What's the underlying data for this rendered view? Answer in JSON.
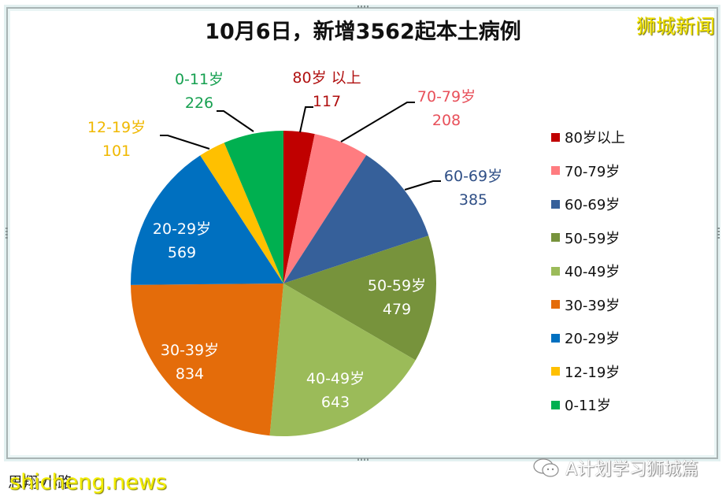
{
  "title": "10月6日，新增3562起本土病例",
  "watermark_top": "狮城新闻",
  "footer": {
    "left_text": "思翔·小路",
    "site": "shicheng.news",
    "wechat_icon": "wechat-icon",
    "right_text": "A计划学习狮城篇"
  },
  "chart_data": {
    "type": "pie",
    "title": "10月6日，新增3562起本土病例",
    "total": 3562,
    "start_angle_deg": 0,
    "direction": "clockwise",
    "legend_position": "right",
    "categories": [
      "80岁以上",
      "70-79岁",
      "60-69岁",
      "50-59岁",
      "40-49岁",
      "30-39岁",
      "20-29岁",
      "12-19岁",
      "0-11岁"
    ],
    "values": [
      117,
      208,
      385,
      479,
      643,
      834,
      569,
      101,
      226
    ],
    "colors": [
      "#c00000",
      "#ff7c80",
      "#36609a",
      "#77933c",
      "#9bbb59",
      "#e46c0a",
      "#0070c0",
      "#ffc000",
      "#00b050"
    ],
    "data_labels": [
      {
        "name": "80岁 以上",
        "value": "117",
        "color": "#b01010",
        "outside": true
      },
      {
        "name": "70-79岁",
        "value": "208",
        "color": "#e8505a",
        "outside": true
      },
      {
        "name": "60-69岁",
        "value": "385",
        "color": "#2f4f86",
        "outside": true
      },
      {
        "name": "50-59岁",
        "value": "479",
        "color": "#ffffff",
        "outside": false
      },
      {
        "name": "40-49岁",
        "value": "643",
        "color": "#ffffff",
        "outside": false
      },
      {
        "name": "30-39岁",
        "value": "834",
        "color": "#ffffff",
        "outside": false
      },
      {
        "name": "20-29岁",
        "value": "569",
        "color": "#ffffff",
        "outside": false
      },
      {
        "name": "12-19岁",
        "value": "101",
        "color": "#f0b800",
        "outside": true
      },
      {
        "name": "0-11岁",
        "value": "226",
        "color": "#16a050",
        "outside": true
      }
    ]
  },
  "legend": [
    {
      "label": "80岁以上",
      "color": "#c00000"
    },
    {
      "label": "70-79岁",
      "color": "#ff7c80"
    },
    {
      "label": "60-69岁",
      "color": "#36609a"
    },
    {
      "label": "50-59岁",
      "color": "#77933c"
    },
    {
      "label": "40-49岁",
      "color": "#9bbb59"
    },
    {
      "label": "30-39岁",
      "color": "#e46c0a"
    },
    {
      "label": "20-29岁",
      "color": "#0070c0"
    },
    {
      "label": "12-19岁",
      "color": "#ffc000"
    },
    {
      "label": "0-11岁",
      "color": "#00b050"
    }
  ]
}
